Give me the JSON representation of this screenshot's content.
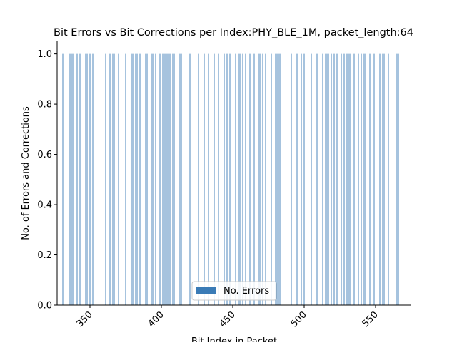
{
  "chart_data": {
    "type": "bar",
    "title": "Bit Errors vs Bit Corrections per Index:PHY_BLE_1M, packet_length:64",
    "xlabel": "Bit Index in Packet",
    "ylabel": "No. of Errors and Corrections",
    "xlim": [
      327,
      575
    ],
    "ylim": [
      0,
      1.05
    ],
    "x_ticks": [
      350,
      400,
      450,
      500,
      550
    ],
    "y_ticks": [
      0.0,
      0.2,
      0.4,
      0.6,
      0.8,
      1.0
    ],
    "y_tick_labels": [
      "0.0",
      "0.2",
      "0.4",
      "0.6",
      "0.8",
      "1.0"
    ],
    "grid": false,
    "legend_position": "bottom-center",
    "series": [
      {
        "name": "No. Errors",
        "color": "#3a7bb6",
        "x": [
          331,
          336,
          337,
          338,
          341,
          343,
          347,
          348,
          350,
          352,
          361,
          364,
          366,
          367,
          370,
          375,
          379,
          380,
          382,
          383,
          385,
          389,
          390,
          393,
          394,
          396,
          399,
          401,
          402,
          403,
          404,
          405,
          406,
          408,
          409,
          413,
          414,
          420,
          426,
          430,
          433,
          437,
          440,
          444,
          446,
          448,
          452,
          454,
          455,
          457,
          459,
          462,
          465,
          468,
          469,
          471,
          473,
          477,
          480,
          481,
          482,
          483,
          491,
          495,
          498,
          500,
          505,
          509,
          513,
          515,
          516,
          517,
          519,
          521,
          523,
          526,
          528,
          530,
          531,
          532,
          535,
          538,
          540,
          542,
          543,
          546,
          549,
          553,
          555,
          556,
          559,
          565,
          566
        ],
        "values": [
          1,
          1,
          1,
          1,
          1,
          1,
          1,
          1,
          1,
          1,
          1,
          1,
          1,
          1,
          1,
          1,
          1,
          1,
          1,
          1,
          1,
          1,
          1,
          1,
          1,
          1,
          1,
          1,
          1,
          1,
          1,
          1,
          1,
          1,
          1,
          1,
          1,
          1,
          1,
          1,
          1,
          1,
          1,
          1,
          1,
          1,
          1,
          1,
          1,
          1,
          1,
          1,
          1,
          1,
          1,
          1,
          1,
          1,
          1,
          1,
          1,
          1,
          1,
          1,
          1,
          1,
          1,
          1,
          1,
          1,
          1,
          1,
          1,
          1,
          1,
          1,
          1,
          1,
          1,
          1,
          1,
          1,
          1,
          1,
          1,
          1,
          1,
          1,
          1,
          1,
          1,
          1,
          1
        ]
      }
    ]
  }
}
